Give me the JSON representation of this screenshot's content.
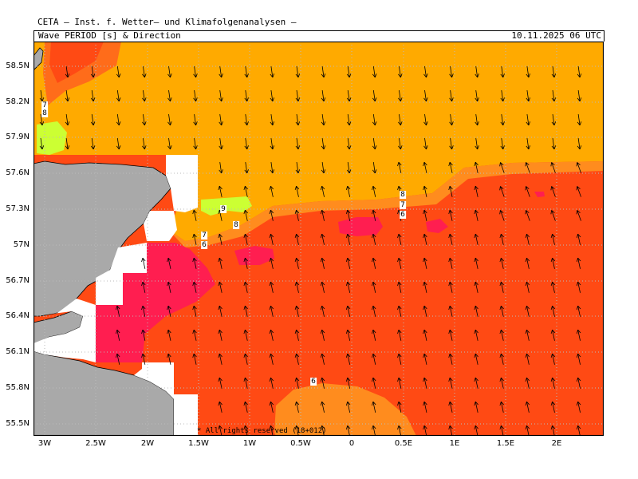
{
  "header": {
    "organization": "CETA — Inst. f. Wetter— und Klimafolgenanalysen —",
    "title": "Wave PERIOD [s] & Direction",
    "datetime": "10.11.2025 06 UTC"
  },
  "map": {
    "lat_labels": [
      "58.5N",
      "58.2N",
      "57.9N",
      "57.6N",
      "57.3N",
      "57N",
      "56.7N",
      "56.4N",
      "56.1N",
      "55.8N",
      "55.5N"
    ],
    "lon_labels": [
      "3W",
      "2.5W",
      "2W",
      "1.5W",
      "1W",
      "0.5W",
      "0",
      "0.5E",
      "1E",
      "1.5E",
      "2E"
    ],
    "contour_labels": [
      "7",
      "8",
      "9",
      "8",
      "7",
      "6",
      "8",
      "7",
      "6",
      "6"
    ],
    "copyright": "* All rights reserved (18+012)",
    "colors": {
      "land": "#a9a9a9",
      "period_5_6": "#ff8c1e",
      "period_6_7": "#ff4a14",
      "period_7_8": "#ff6c1a",
      "period_8_9": "#ffaa00",
      "period_9_10": "#ffb400",
      "period_high": "#ccff33",
      "period_low": "#ff1e50",
      "grid": "#bbbbbb",
      "arrow": "#000000"
    },
    "direction_field": "mostly southward arrows in the northern area, northward/north-eastward arrows in the southern area"
  }
}
